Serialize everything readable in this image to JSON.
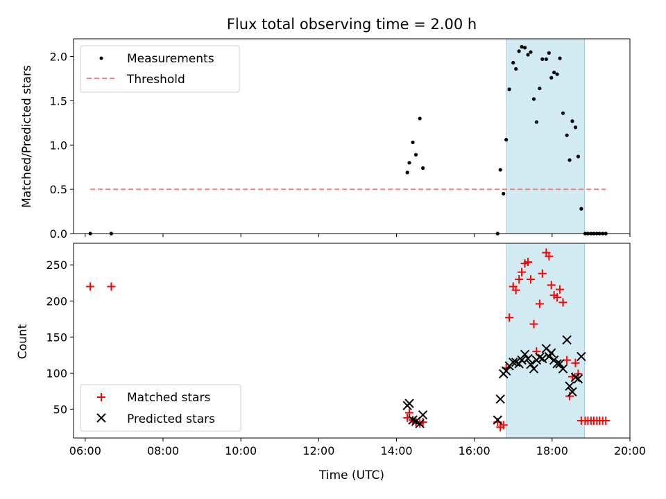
{
  "chart_data": {
    "type": "scatter",
    "title": "Flux total observing time = 2.00 h",
    "xlabel": "Time (UTC)",
    "x_tick_labels": [
      "06:00",
      "08:00",
      "10:00",
      "12:00",
      "14:00",
      "16:00",
      "18:00",
      "20:00"
    ],
    "x_range_hours": [
      5.7,
      20.0
    ],
    "highlight_span_hours": [
      16.83,
      18.83
    ],
    "colors": {
      "measurements": "#000000",
      "threshold": "#f08080",
      "matched": "#ff0000",
      "predicted": "#000000",
      "span": "#add8e6"
    },
    "panels": [
      {
        "ylabel": "Matched/Predicted stars",
        "ylim": [
          0,
          2.2
        ],
        "yticks": [
          "0.0",
          "0.5",
          "1.0",
          "1.5",
          "2.0"
        ],
        "yticks_values": [
          0,
          0.5,
          1.0,
          1.5,
          2.0
        ],
        "legend_position": "top-left",
        "series": [
          {
            "name": "Measurements",
            "marker": "dot",
            "x": [
              6.13,
              6.67,
              14.28,
              14.33,
              14.42,
              14.5,
              14.6,
              14.68,
              16.6,
              16.67,
              16.75,
              16.82,
              16.9,
              17.0,
              17.07,
              17.15,
              17.22,
              17.3,
              17.38,
              17.45,
              17.53,
              17.6,
              17.68,
              17.75,
              17.85,
              17.92,
              17.98,
              18.05,
              18.13,
              18.2,
              18.28,
              18.38,
              18.45,
              18.52,
              18.6,
              18.67,
              18.75,
              18.85,
              18.92,
              19.0,
              19.07,
              19.15,
              19.22,
              19.3,
              19.38
            ],
            "y": [
              0,
              0,
              0.69,
              0.8,
              1.03,
              0.89,
              1.3,
              0.74,
              0,
              0.72,
              0.45,
              1.06,
              1.63,
              1.93,
              1.86,
              2.06,
              2.11,
              2.1,
              2.02,
              2.05,
              1.52,
              1.26,
              1.64,
              1.97,
              1.97,
              2.04,
              1.76,
              1.82,
              1.8,
              1.98,
              1.36,
              1.11,
              0.83,
              1.27,
              1.2,
              0.87,
              0.28,
              0,
              0,
              0,
              0,
              0,
              0,
              0,
              0
            ]
          },
          {
            "name": "Threshold",
            "style": "dashed",
            "x": [
              6.13,
              19.38
            ],
            "y": [
              0.5,
              0.5
            ]
          }
        ]
      },
      {
        "ylabel": "Count",
        "ylim": [
          10,
          280
        ],
        "yticks": [
          "50",
          "100",
          "150",
          "200",
          "250"
        ],
        "yticks_values": [
          50,
          100,
          150,
          200,
          250
        ],
        "legend_position": "bottom-left",
        "series": [
          {
            "name": "Matched stars",
            "marker": "plus",
            "x": [
              6.13,
              6.67,
              14.28,
              14.33,
              14.42,
              14.5,
              14.6,
              14.68,
              16.6,
              16.67,
              16.75,
              16.82,
              16.9,
              17.0,
              17.07,
              17.15,
              17.22,
              17.3,
              17.38,
              17.45,
              17.53,
              17.6,
              17.68,
              17.75,
              17.85,
              17.92,
              17.98,
              18.05,
              18.13,
              18.2,
              18.28,
              18.38,
              18.45,
              18.52,
              18.6,
              18.67,
              18.75,
              18.85,
              18.92,
              19.0,
              19.07,
              19.15,
              19.22,
              19.3,
              19.38
            ],
            "y": [
              220,
              220,
              38,
              45,
              35,
              32,
              30,
              32,
              32,
              25,
              28,
              107,
              177,
              220,
              215,
              230,
              240,
              252,
              254,
              230,
              168,
              130,
              196,
              238,
              267,
              262,
              222,
              208,
              205,
              216,
              198,
              118,
              68,
              95,
              114,
              99,
              34,
              34,
              34,
              34,
              34,
              34,
              34,
              34,
              34
            ]
          },
          {
            "name": "Predicted stars",
            "marker": "x",
            "x": [
              14.28,
              14.33,
              14.42,
              14.5,
              14.6,
              14.68,
              16.6,
              16.67,
              16.75,
              16.82,
              16.9,
              17.0,
              17.07,
              17.15,
              17.22,
              17.3,
              17.38,
              17.45,
              17.53,
              17.6,
              17.68,
              17.75,
              17.85,
              17.92,
              17.98,
              18.05,
              18.13,
              18.2,
              18.28,
              18.38,
              18.45,
              18.52,
              18.6,
              18.67,
              18.75
            ],
            "y": [
              55,
              58,
              35,
              33,
              30,
              42,
              35,
              64,
              99,
              103,
              110,
              115,
              115,
              113,
              118,
              126,
              120,
              112,
              106,
              118,
              122,
              120,
              134,
              123,
              128,
              118,
              113,
              113,
              106,
              146,
              82,
              74,
              94,
              92,
              123
            ]
          }
        ]
      }
    ]
  }
}
